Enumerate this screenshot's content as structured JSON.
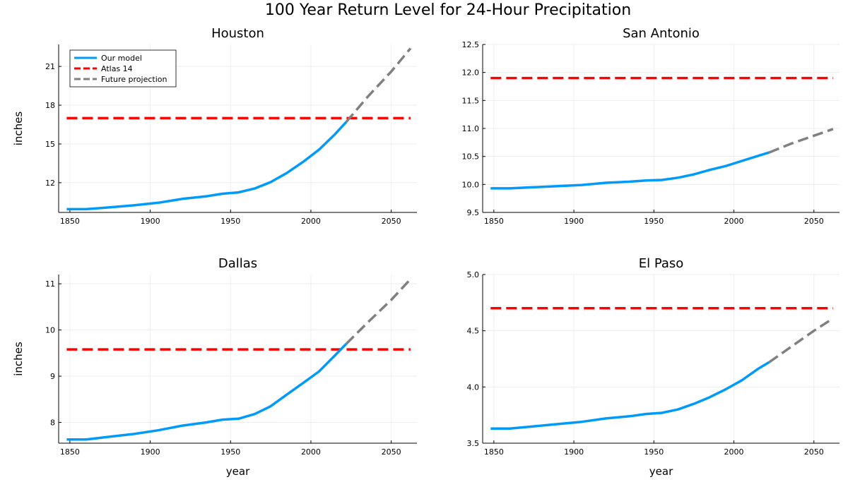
{
  "figure": {
    "title": "100 Year Return Level for 24-Hour Precipitation"
  },
  "colors": {
    "model": "#009af9",
    "atlas": "#ff0000",
    "projection": "#808080",
    "grid": "#eeeeee",
    "axis": "#000000"
  },
  "legend": {
    "placement": "top-left",
    "entries": [
      "Our model",
      "Atlas 14",
      "Future projection"
    ]
  },
  "chart_data": [
    {
      "type": "line",
      "title": "Houston",
      "xlabel": "",
      "ylabel": "inches",
      "xlim": [
        1843,
        2066
      ],
      "ylim": [
        9.7,
        22.7
      ],
      "xticks": [
        1850,
        1900,
        1950,
        2000,
        2050
      ],
      "yticks": [
        12,
        15,
        18,
        21
      ],
      "grid": true,
      "legend": true,
      "series": [
        {
          "name": "Our model",
          "style": "solid",
          "x": [
            1848,
            1860,
            1875,
            1890,
            1905,
            1920,
            1935,
            1945,
            1955,
            1965,
            1975,
            1985,
            1995,
            2005,
            2015,
            2022
          ],
          "y": [
            9.95,
            9.95,
            10.1,
            10.25,
            10.45,
            10.75,
            10.95,
            11.15,
            11.25,
            11.55,
            12.05,
            12.75,
            13.6,
            14.55,
            15.75,
            16.7
          ]
        },
        {
          "name": "Atlas 14",
          "style": "dashed",
          "x": [
            1848,
            2062
          ],
          "y": [
            17.0,
            17.0
          ]
        },
        {
          "name": "Future projection",
          "style": "dashed",
          "x": [
            2022,
            2035,
            2050,
            2062
          ],
          "y": [
            16.7,
            18.6,
            20.6,
            22.4
          ]
        }
      ]
    },
    {
      "type": "line",
      "title": "San Antonio",
      "xlabel": "",
      "ylabel": "",
      "xlim": [
        1843,
        2066
      ],
      "ylim": [
        9.5,
        12.5
      ],
      "xticks": [
        1850,
        1900,
        1950,
        2000,
        2050
      ],
      "yticks": [
        9.5,
        10.0,
        10.5,
        11.0,
        11.5,
        12.0,
        12.5
      ],
      "grid": true,
      "legend": false,
      "series": [
        {
          "name": "Our model",
          "style": "solid",
          "x": [
            1848,
            1860,
            1875,
            1890,
            1905,
            1920,
            1935,
            1945,
            1955,
            1965,
            1975,
            1985,
            1995,
            2005,
            2015,
            2022
          ],
          "y": [
            9.93,
            9.93,
            9.95,
            9.97,
            9.99,
            10.03,
            10.05,
            10.07,
            10.08,
            10.12,
            10.18,
            10.26,
            10.33,
            10.42,
            10.51,
            10.57
          ]
        },
        {
          "name": "Atlas 14",
          "style": "dashed",
          "x": [
            1848,
            2062
          ],
          "y": [
            11.9,
            11.9
          ]
        },
        {
          "name": "Future projection",
          "style": "dashed",
          "x": [
            2022,
            2035,
            2050,
            2062
          ],
          "y": [
            10.57,
            10.72,
            10.87,
            10.99
          ]
        }
      ]
    },
    {
      "type": "line",
      "title": "Dallas",
      "xlabel": "year",
      "ylabel": "inches",
      "xlim": [
        1843,
        2066
      ],
      "ylim": [
        7.55,
        11.2
      ],
      "xticks": [
        1850,
        1900,
        1950,
        2000,
        2050
      ],
      "yticks": [
        8,
        9,
        10,
        11
      ],
      "grid": true,
      "legend": false,
      "series": [
        {
          "name": "Our model",
          "style": "solid",
          "x": [
            1848,
            1860,
            1875,
            1890,
            1905,
            1920,
            1935,
            1945,
            1955,
            1965,
            1975,
            1985,
            1995,
            2005,
            2015,
            2022
          ],
          "y": [
            7.63,
            7.63,
            7.69,
            7.75,
            7.83,
            7.93,
            8.0,
            8.06,
            8.08,
            8.18,
            8.35,
            8.6,
            8.85,
            9.1,
            9.45,
            9.7
          ]
        },
        {
          "name": "Atlas 14",
          "style": "dashed",
          "x": [
            1848,
            2062
          ],
          "y": [
            9.58,
            9.58
          ]
        },
        {
          "name": "Future projection",
          "style": "dashed",
          "x": [
            2022,
            2035,
            2050,
            2062
          ],
          "y": [
            9.7,
            10.15,
            10.65,
            11.1
          ]
        }
      ]
    },
    {
      "type": "line",
      "title": "El Paso",
      "xlabel": "year",
      "ylabel": "",
      "xlim": [
        1843,
        2066
      ],
      "ylim": [
        3.5,
        5.0
      ],
      "xticks": [
        1850,
        1900,
        1950,
        2000,
        2050
      ],
      "yticks": [
        3.5,
        4.0,
        4.5,
        5.0
      ],
      "grid": true,
      "legend": false,
      "series": [
        {
          "name": "Our model",
          "style": "solid",
          "x": [
            1848,
            1860,
            1875,
            1890,
            1905,
            1920,
            1935,
            1945,
            1955,
            1965,
            1975,
            1985,
            1995,
            2005,
            2015,
            2022
          ],
          "y": [
            3.63,
            3.63,
            3.65,
            3.67,
            3.69,
            3.72,
            3.74,
            3.76,
            3.77,
            3.8,
            3.85,
            3.91,
            3.98,
            4.06,
            4.16,
            4.22
          ]
        },
        {
          "name": "Atlas 14",
          "style": "dashed",
          "x": [
            1848,
            2062
          ],
          "y": [
            4.7,
            4.7
          ]
        },
        {
          "name": "Future projection",
          "style": "dashed",
          "x": [
            2022,
            2035,
            2050,
            2062
          ],
          "y": [
            4.22,
            4.35,
            4.5,
            4.61
          ]
        }
      ]
    }
  ]
}
